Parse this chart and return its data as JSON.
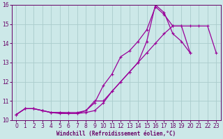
{
  "background_color": "#cce8e8",
  "grid_color": "#aacccc",
  "line_color": "#990099",
  "marker_color": "#990099",
  "xlabel": "Windchill (Refroidissement éolien,°C)",
  "xlabel_color": "#660066",
  "tick_color": "#660066",
  "xlim": [
    -0.5,
    23.5
  ],
  "ylim": [
    10,
    16
  ],
  "yticks": [
    10,
    11,
    12,
    13,
    14,
    15,
    16
  ],
  "xticks": [
    0,
    1,
    2,
    3,
    4,
    5,
    6,
    7,
    8,
    9,
    10,
    11,
    12,
    13,
    14,
    15,
    16,
    17,
    18,
    19,
    20,
    21,
    22,
    23
  ],
  "line1_x": [
    0,
    1,
    2,
    3,
    4,
    5,
    6,
    7,
    8,
    9,
    10,
    11,
    12,
    13,
    14,
    15,
    16,
    17,
    18,
    19,
    20
  ],
  "line1_y": [
    10.3,
    10.6,
    10.6,
    10.5,
    10.4,
    10.4,
    10.4,
    10.4,
    10.5,
    10.9,
    11.8,
    12.4,
    13.3,
    13.6,
    14.1,
    14.7,
    15.9,
    15.5,
    14.9,
    14.9,
    13.5
  ],
  "line2_x": [
    0,
    1,
    2,
    3,
    4,
    5,
    6,
    7,
    8,
    9,
    10,
    11,
    12,
    13,
    14,
    15,
    16,
    17,
    18,
    19,
    20,
    21,
    22,
    23
  ],
  "line2_y": [
    10.3,
    10.6,
    10.6,
    10.5,
    10.4,
    10.4,
    10.35,
    10.35,
    10.4,
    10.5,
    10.9,
    11.5,
    12.0,
    12.5,
    13.0,
    13.5,
    14.0,
    14.5,
    14.9,
    14.9,
    14.9,
    14.9,
    14.9,
    13.5
  ],
  "line3_x": [
    0,
    1,
    2,
    3,
    4,
    5,
    6,
    7,
    8,
    9,
    10,
    11,
    12,
    13,
    14,
    15,
    16,
    17,
    18,
    19,
    20,
    21,
    22,
    23
  ],
  "line3_y": [
    10.3,
    10.6,
    10.6,
    10.5,
    10.4,
    10.35,
    10.35,
    10.35,
    10.5,
    11.0,
    11.0,
    11.5,
    12.0,
    12.5,
    13.0,
    14.1,
    16.0,
    15.6,
    14.5,
    14.1,
    13.5,
    null,
    null,
    null
  ]
}
